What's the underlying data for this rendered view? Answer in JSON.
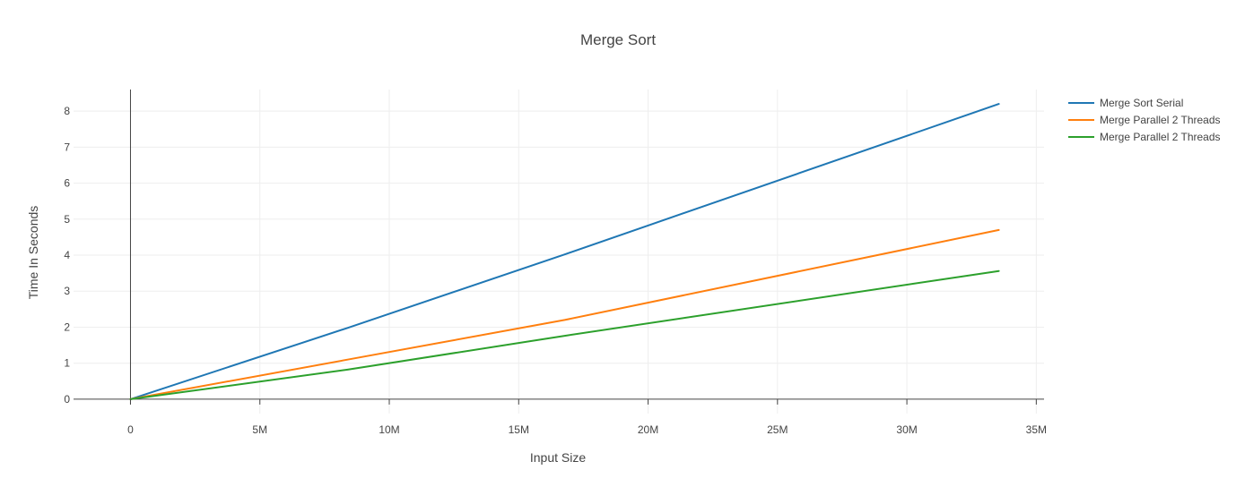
{
  "chart_data": {
    "type": "line",
    "title": "Merge Sort",
    "xlabel": "Input Size",
    "ylabel": "Time In Seconds",
    "xlim": [
      -2200000,
      35300000
    ],
    "ylim": [
      -0.4,
      8.6
    ],
    "x_ticks": [
      0,
      5000000,
      10000000,
      15000000,
      20000000,
      25000000,
      30000000,
      35000000
    ],
    "x_tick_labels": [
      "0",
      "5M",
      "10M",
      "15M",
      "20M",
      "25M",
      "30M",
      "35M"
    ],
    "y_ticks": [
      0,
      1,
      2,
      3,
      4,
      5,
      6,
      7,
      8
    ],
    "y_tick_labels": [
      "0",
      "1",
      "2",
      "3",
      "4",
      "5",
      "6",
      "7",
      "8"
    ],
    "grid": true,
    "legend_position": "top-right",
    "series": [
      {
        "name": "Merge Sort Serial",
        "color": "#1f77b4",
        "x": [
          0,
          8388608,
          16777216,
          33554432
        ],
        "y": [
          0,
          1.98,
          4.02,
          8.2
        ]
      },
      {
        "name": "Merge Parallel 2 Threads",
        "color": "#ff7f0e",
        "x": [
          0,
          8388608,
          16777216,
          33554432
        ],
        "y": [
          0,
          1.1,
          2.2,
          4.7
        ]
      },
      {
        "name": "Merge Parallel 2 Threads",
        "color": "#2ca02c",
        "x": [
          0,
          8388608,
          16777216,
          33554432
        ],
        "y": [
          0,
          0.82,
          1.76,
          3.56
        ]
      }
    ]
  }
}
